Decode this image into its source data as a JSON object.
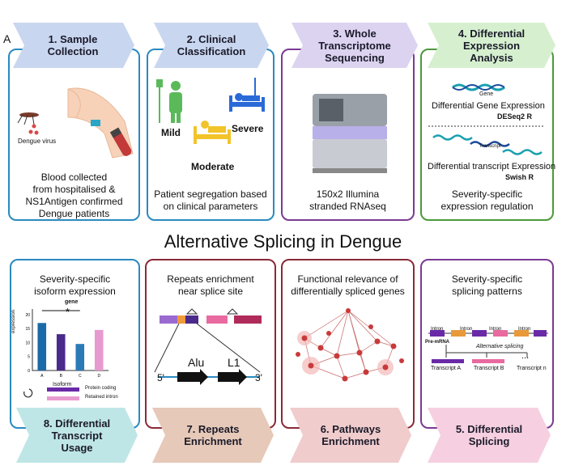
{
  "figure_letter": "A",
  "center_title": "Alternative Splicing in Dengue",
  "top_steps": [
    {
      "title": "1.  Sample\nCollection",
      "caption": "Blood collected\nfrom hospitalised &\nNS1Antigen confirmed\nDengue patients",
      "extra": {
        "virus_label": "Dengue virus"
      }
    },
    {
      "title": "2. Clinical\nClassification",
      "caption": "Patient segregation based\non clinical parameters",
      "extra": {
        "mild": "Mild",
        "severe": "Severe",
        "moderate": "Moderate"
      }
    },
    {
      "title": "3. Whole\nTranscriptome\nSequencing",
      "caption": "150x2 Illumina\nstranded RNAseq"
    },
    {
      "title": "4. Differential\nExpression\nAnalysis",
      "caption": "Severity-specific\nexpression regulation",
      "extra": {
        "gene_label": "Gene",
        "dge": "Differential  Gene Expression",
        "deseq": "DESeq2 R",
        "transcript_label": "Transcript",
        "dte": "Differential  transcript Expression",
        "swish": "Swish R"
      }
    }
  ],
  "bottom_steps": [
    {
      "title": "8. Differential\nTranscript\nUsage",
      "caption": "Severity-specific\nisoform expression",
      "extra": {
        "chart_title": "gene",
        "ylabel": "expression",
        "xlabel": "Isoform",
        "star": "*",
        "legend_coding": "Protein coding",
        "legend_intron": "Retained intron"
      }
    },
    {
      "title": "7. Repeats\nEnrichment",
      "caption": "Repeats enrichment\nnear splice site",
      "extra": {
        "alu": "Alu",
        "l1": "L1",
        "five": "5'",
        "three": "3'"
      }
    },
    {
      "title": "6. Pathways\nEnrichment",
      "caption": "Functional relevance of\ndifferentially spliced genes"
    },
    {
      "title": "5. Differential\nSplicing",
      "caption": "Severity-specific\nsplicing patterns",
      "extra": {
        "intron": "Intron",
        "pre_mrna": "Pre-mRNA",
        "alt_splicing": "Alternative splicing",
        "tA": "Transcript A",
        "tB": "Transcript B",
        "tn": "Transcript n",
        "dots": "..."
      }
    }
  ],
  "colors": {
    "blue_border": "#2a8ac0",
    "purple_border": "#7a3a92",
    "green_border": "#4a9a3a",
    "red_border": "#8a2a36"
  },
  "chart_data": {
    "type": "bar",
    "title": "gene",
    "categories": [
      "A",
      "B",
      "C",
      "D"
    ],
    "values": [
      17,
      13,
      9.5,
      14.5
    ],
    "colors": [
      "#1a6aa8",
      "#4a2a8a",
      "#2a7ab8",
      "#e79ad0"
    ],
    "xlabel": "Isoform",
    "ylabel": "expression",
    "yticks": [
      0,
      5,
      10,
      15,
      20
    ],
    "ylim": [
      0,
      22
    ]
  }
}
